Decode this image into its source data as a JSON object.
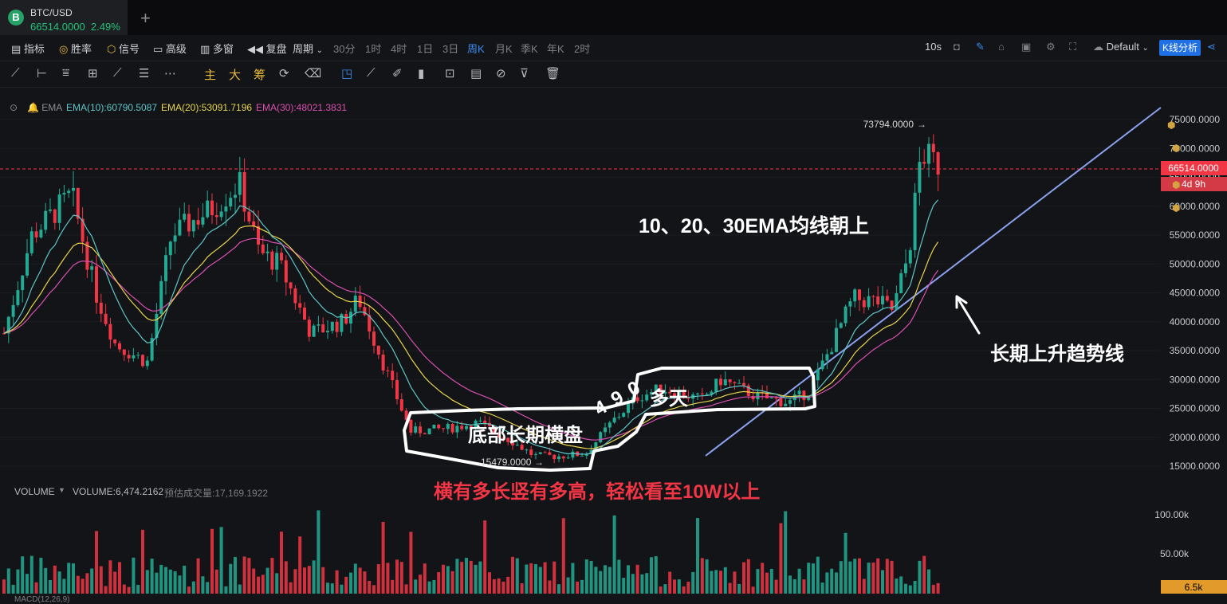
{
  "tab": {
    "symbol": "BTC/USD",
    "price": "66514.0000",
    "change": "2.49%",
    "plus": "+"
  },
  "toolbar": {
    "items": [
      "指标",
      "胜率",
      "信号",
      "高级",
      "多窗",
      "复盘",
      "周期"
    ],
    "intervals": [
      "30分",
      "1时",
      "4时",
      "1日",
      "3日",
      "周K",
      "月K",
      "季K",
      "年K",
      "2时"
    ],
    "active_interval": "周K",
    "refresh": "10s",
    "layout": "Default",
    "analysis_button": "K线分析"
  },
  "drawtools": {
    "labels": [
      "主",
      "大",
      "筹"
    ]
  },
  "ema_legend": {
    "title": "EMA",
    "ema10": "EMA(10):60790.5087",
    "ema20": "EMA(20):53091.7196",
    "ema30": "EMA(30):48021.3831"
  },
  "volume_legend": {
    "title": "VOLUME",
    "value": "VOLUME:6,474.2162",
    "estimate": "预估成交量:17,169.1922"
  },
  "price_axis": {
    "labels": [
      "75000.0000",
      "70000.0000",
      "65000.0000",
      "60000.0000",
      "55000.0000",
      "50000.0000",
      "45000.0000",
      "40000.0000",
      "35000.0000",
      "30000.0000",
      "25000.0000",
      "20000.0000",
      "15000.0000"
    ],
    "current": "66514.0000",
    "countdown": "4d 9h"
  },
  "volume_axis": {
    "labels": [
      "100.00k",
      "50.00k"
    ],
    "current": "6.5k"
  },
  "markers": {
    "high": "73794.0000",
    "low": "15479.0000"
  },
  "annotations": {
    "ema_up": "10、20、30EMA均线朝上",
    "trendline": "长期上升趋势线",
    "consolidation": "底部长期横盘",
    "days_num": "4 9 0",
    "days_label": "多天",
    "slogan": "横有多长竖有多高，轻松看至10W以上"
  },
  "bottom_legend": "MACD(12,26,9)",
  "colors": {
    "up": "#22ab94",
    "down": "#f23645",
    "ema10": "#5fc6c8",
    "ema20": "#e8d44d",
    "ema30": "#d94fb0",
    "trendline": "#8aa2f0",
    "accent": "#1f6fe5"
  }
}
